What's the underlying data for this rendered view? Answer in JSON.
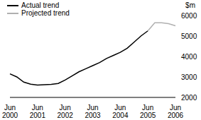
{
  "chart_data": {
    "type": "line",
    "ylabel": "$m",
    "categories": [
      "Jun 2000",
      null,
      null,
      null,
      "Jun 2001",
      null,
      null,
      null,
      "Jun 2002",
      null,
      null,
      null,
      "Jun 2003",
      null,
      null,
      null,
      "Jun 2004",
      null,
      null,
      null,
      "Jun 2005",
      null,
      null,
      null,
      "Jun 2006"
    ],
    "series": [
      {
        "name": "Actual trend",
        "color": "#000000",
        "values": [
          3150,
          3000,
          2750,
          2650,
          2600,
          2620,
          2640,
          2680,
          2850,
          3050,
          3250,
          3400,
          3550,
          3700,
          3900,
          4050,
          4200,
          4400,
          4700,
          5000,
          5250,
          null,
          null,
          null,
          null
        ]
      },
      {
        "name": "Projected trend",
        "color": "#b0b0b0",
        "values": [
          null,
          null,
          null,
          null,
          null,
          null,
          null,
          null,
          null,
          null,
          null,
          null,
          null,
          null,
          null,
          null,
          null,
          null,
          null,
          null,
          5250,
          5650,
          5650,
          5600,
          5500
        ]
      }
    ],
    "ylim": [
      2000,
      6000
    ],
    "yticks": [
      2000,
      3000,
      4000,
      5000,
      6000
    ],
    "grid": false,
    "legend": "top-left"
  }
}
